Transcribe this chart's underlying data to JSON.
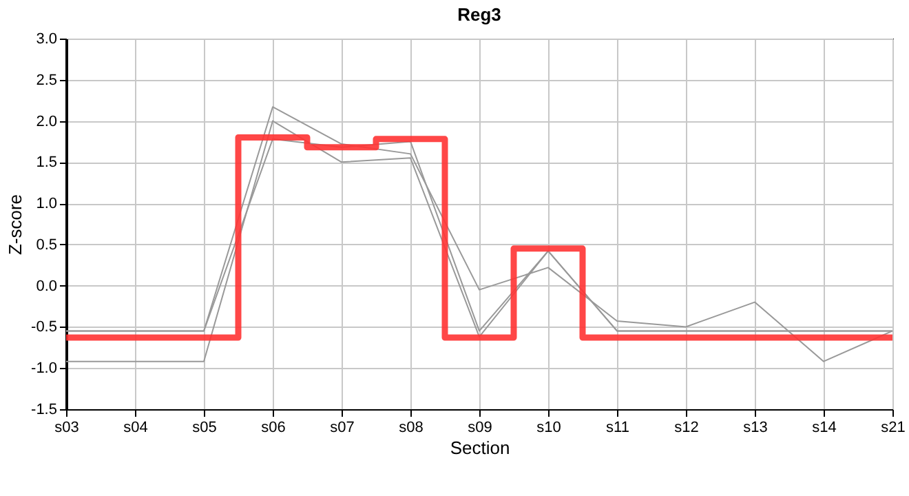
{
  "chart_data": {
    "type": "line",
    "title": "Reg3",
    "xlabel": "Section",
    "ylabel": "Z-score",
    "categories": [
      "s03",
      "s04",
      "s05",
      "s06",
      "s07",
      "s08",
      "s09",
      "s10",
      "s11",
      "s12",
      "s13",
      "s14",
      "s21"
    ],
    "series": [
      {
        "type": "line",
        "color": "#999999",
        "values": [
          -0.55,
          -0.55,
          -0.55,
          2.17,
          1.72,
          1.6,
          -0.05,
          0.22,
          -0.43,
          -0.5,
          -0.2,
          -0.92,
          -0.55
        ]
      },
      {
        "type": "line",
        "color": "#999999",
        "values": [
          -0.92,
          -0.92,
          -0.92,
          2.0,
          1.5,
          1.55,
          -0.62,
          0.42,
          -0.55,
          -0.55,
          -0.55,
          -0.55,
          -0.55
        ]
      },
      {
        "type": "line",
        "color": "#999999",
        "values": [
          -0.55,
          -0.55,
          -0.55,
          1.78,
          1.68,
          1.75,
          -0.55,
          0.42,
          -0.55,
          -0.55,
          -0.55,
          -0.55,
          -0.55
        ]
      },
      {
        "type": "step",
        "color": "#ff3333",
        "values": [
          -0.63,
          -0.63,
          -0.63,
          1.8,
          1.68,
          1.78,
          -0.63,
          0.45,
          -0.63,
          -0.63,
          -0.63,
          -0.63,
          -0.63
        ]
      }
    ],
    "ylim": [
      -1.5,
      3.0
    ],
    "yticks": [
      {
        "value": -1.5,
        "label": "-1.5"
      },
      {
        "value": -1,
        "label": "-1.0"
      },
      {
        "value": -0.5,
        "label": "-0.5"
      },
      {
        "value": 0,
        "label": "0.0"
      },
      {
        "value": 0.5,
        "label": "0.5"
      },
      {
        "value": 1,
        "label": "1.0"
      },
      {
        "value": 1.5,
        "label": "1.5"
      },
      {
        "value": 2,
        "label": "2.0"
      },
      {
        "value": 2.5,
        "label": "2.5"
      },
      {
        "value": 3,
        "label": "3.0"
      }
    ],
    "grid": true,
    "marker": "none"
  }
}
